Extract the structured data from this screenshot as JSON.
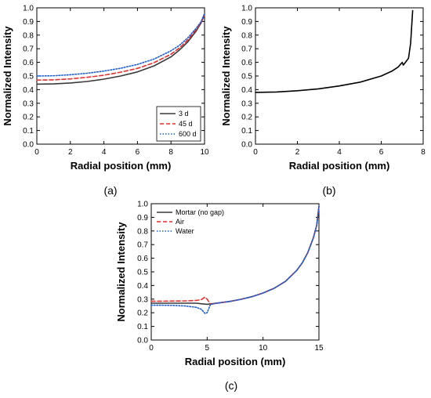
{
  "chart_data": [
    {
      "type": "line",
      "panel_label": "(a)",
      "xlabel": "Radial position (mm)",
      "ylabel": "Normalized Intensity",
      "xlim": [
        0,
        10
      ],
      "ylim": [
        0,
        1.0
      ],
      "xticks": [
        "0",
        "2",
        "4",
        "6",
        "8",
        "10"
      ],
      "yticks": [
        "0.0",
        "0.1",
        "0.2",
        "0.3",
        "0.4",
        "0.5",
        "0.6",
        "0.7",
        "0.8",
        "0.9",
        "1.0"
      ],
      "legend_position": "bottom-right",
      "series": [
        {
          "name": "3 d",
          "color": "#3a3a3a",
          "style": "solid",
          "x": [
            0,
            1,
            2,
            3,
            4,
            5,
            6,
            7,
            8,
            8.5,
            9,
            9.5,
            9.8,
            10
          ],
          "y": [
            0.44,
            0.442,
            0.449,
            0.46,
            0.477,
            0.5,
            0.53,
            0.575,
            0.64,
            0.69,
            0.75,
            0.83,
            0.89,
            0.95
          ]
        },
        {
          "name": "45 d",
          "color": "#e03030",
          "style": "dashed",
          "x": [
            0,
            1,
            2,
            3,
            4,
            5,
            6,
            7,
            8,
            8.5,
            9,
            9.5,
            9.8,
            10
          ],
          "y": [
            0.47,
            0.472,
            0.479,
            0.49,
            0.506,
            0.528,
            0.556,
            0.598,
            0.66,
            0.705,
            0.765,
            0.84,
            0.895,
            0.95
          ]
        },
        {
          "name": "600 d",
          "color": "#1f5fd0",
          "style": "dotted",
          "x": [
            0,
            1,
            2,
            3,
            4,
            5,
            6,
            7,
            8,
            8.5,
            9,
            9.5,
            9.8,
            10
          ],
          "y": [
            0.5,
            0.502,
            0.509,
            0.52,
            0.536,
            0.557,
            0.585,
            0.625,
            0.685,
            0.725,
            0.78,
            0.85,
            0.9,
            0.96
          ]
        }
      ]
    },
    {
      "type": "line",
      "panel_label": "(b)",
      "xlabel": "Radial position (mm)",
      "ylabel": "Normalized Intensity",
      "xlim": [
        0,
        8
      ],
      "ylim": [
        0,
        1.0
      ],
      "xticks": [
        "0",
        "2",
        "4",
        "6",
        "8"
      ],
      "yticks": [
        "0.0",
        "0.1",
        "0.2",
        "0.3",
        "0.4",
        "0.5",
        "0.6",
        "0.7",
        "0.8",
        "0.9",
        "1.0"
      ],
      "series": [
        {
          "name": "",
          "color": "#000000",
          "style": "solid",
          "x": [
            0,
            1,
            2,
            3,
            4,
            5,
            6,
            6.5,
            6.8,
            7.0,
            7.05,
            7.15,
            7.3,
            7.4,
            7.5
          ],
          "y": [
            0.38,
            0.383,
            0.392,
            0.406,
            0.427,
            0.455,
            0.5,
            0.535,
            0.565,
            0.6,
            0.58,
            0.6,
            0.63,
            0.74,
            0.98
          ]
        }
      ]
    },
    {
      "type": "line",
      "panel_label": "(c)",
      "xlabel": "Radial position (mm)",
      "ylabel": "Normalized Intensity",
      "xlim": [
        0,
        15
      ],
      "ylim": [
        0,
        1.0
      ],
      "xticks": [
        "0",
        "5",
        "10",
        "15"
      ],
      "yticks": [
        "0.0",
        "0.1",
        "0.2",
        "0.3",
        "0.4",
        "0.5",
        "0.6",
        "0.7",
        "0.8",
        "0.9",
        "1.0"
      ],
      "legend_position": "top-left",
      "series": [
        {
          "name": "Mortar (no gap)",
          "color": "#3a3a3a",
          "style": "solid",
          "x": [
            0,
            1,
            2,
            3,
            4,
            5,
            6,
            7,
            8,
            9,
            10,
            11,
            12,
            13,
            13.5,
            14,
            14.5,
            14.8,
            15
          ],
          "y": [
            0.27,
            0.27,
            0.27,
            0.27,
            0.27,
            0.262,
            0.272,
            0.283,
            0.298,
            0.318,
            0.345,
            0.38,
            0.43,
            0.51,
            0.565,
            0.64,
            0.75,
            0.84,
            0.98
          ]
        },
        {
          "name": "Air",
          "color": "#e03030",
          "style": "dashed",
          "x": [
            0,
            1,
            2,
            3,
            4,
            4.5,
            4.8,
            5,
            5.3,
            6,
            7,
            8,
            9,
            10,
            11,
            12,
            13,
            13.5,
            14,
            14.5,
            14.8,
            15
          ],
          "y": [
            0.285,
            0.285,
            0.286,
            0.287,
            0.29,
            0.297,
            0.315,
            0.3,
            0.262,
            0.272,
            0.283,
            0.298,
            0.318,
            0.345,
            0.38,
            0.43,
            0.51,
            0.565,
            0.64,
            0.75,
            0.84,
            0.98
          ]
        },
        {
          "name": "Water",
          "color": "#1f5fd0",
          "style": "dotted",
          "x": [
            0,
            1,
            2,
            3,
            4,
            4.5,
            4.8,
            5,
            5.3,
            6,
            7,
            8,
            9,
            10,
            11,
            12,
            13,
            13.5,
            14,
            14.5,
            14.8,
            15
          ],
          "y": [
            0.255,
            0.255,
            0.254,
            0.25,
            0.24,
            0.225,
            0.195,
            0.2,
            0.262,
            0.272,
            0.283,
            0.298,
            0.318,
            0.345,
            0.38,
            0.43,
            0.51,
            0.565,
            0.64,
            0.75,
            0.84,
            0.98
          ]
        }
      ]
    }
  ]
}
